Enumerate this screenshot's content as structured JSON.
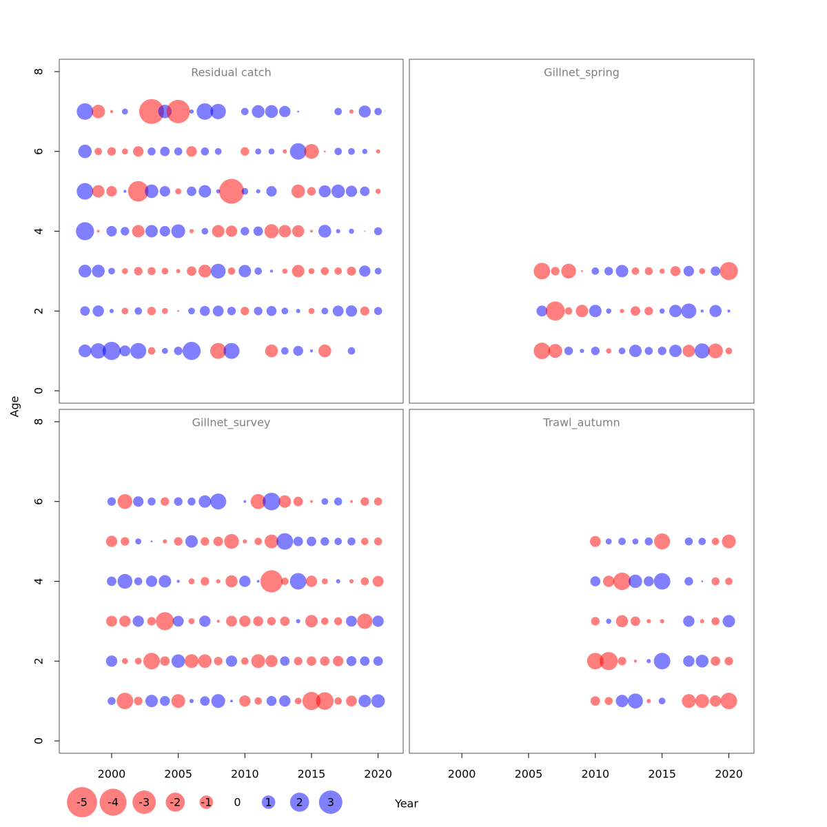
{
  "chart_data": [
    {
      "type": "bubble",
      "title": "Residual catch",
      "x": [
        1998,
        1999,
        2000,
        2001,
        2002,
        2003,
        2004,
        2005,
        2006,
        2007,
        2008,
        2009,
        2010,
        2011,
        2012,
        2013,
        2014,
        2015,
        2016,
        2017,
        2018,
        2019,
        2020
      ],
      "ages": [
        1,
        2,
        3,
        4,
        5,
        6,
        7
      ],
      "values": [
        [
          0.9,
          1.3,
          1.8,
          0.65,
          1.4,
          -0.3,
          0.2,
          0.4,
          1.8,
          null,
          -1.4,
          1.4,
          null,
          null,
          -0.9,
          0.3,
          0.55,
          0.05,
          -0.9,
          null,
          0.3,
          null,
          null
        ],
        [
          0.5,
          0.7,
          0.1,
          -0.25,
          0.3,
          -0.4,
          -0.2,
          -0.02,
          0.25,
          0.55,
          0.65,
          0.4,
          -0.4,
          0.4,
          0.55,
          0.25,
          0.1,
          -0.2,
          0.25,
          0.65,
          0.7,
          -0.45,
          0.35
        ],
        [
          0.9,
          0.9,
          0.25,
          -0.2,
          -0.4,
          -0.35,
          -0.25,
          -0.1,
          -0.5,
          -0.9,
          1.2,
          -0.3,
          0.85,
          0.3,
          0.05,
          -0.15,
          -0.85,
          -0.2,
          -0.35,
          -0.3,
          -0.45,
          0.7,
          0.25
        ],
        [
          1.8,
          -0.04,
          0.6,
          0.4,
          -0.85,
          0.85,
          0.6,
          1.05,
          -0.1,
          0.25,
          -0.85,
          -0.7,
          0.4,
          0.5,
          -1.1,
          -0.85,
          -0.8,
          -0.04,
          0.9,
          0.1,
          0.15,
          -0.01,
          0.35
        ],
        [
          1.5,
          -0.85,
          -0.6,
          0.05,
          -2.3,
          1,
          0.6,
          -0.2,
          0.5,
          0.85,
          0.1,
          -3.4,
          0.25,
          0.1,
          0.6,
          null,
          -1,
          -0.4,
          0.8,
          1,
          0.7,
          0.5,
          -0.15
        ],
        [
          1,
          -0.3,
          -0.4,
          -0.2,
          -0.6,
          0.35,
          0.5,
          0.35,
          -0.6,
          0.35,
          0.25,
          null,
          -0.4,
          0.2,
          0.2,
          -0.1,
          1.5,
          -1.2,
          -0.02,
          0.3,
          0.25,
          0.15,
          -0.1
        ],
        [
          1.5,
          -1,
          -0.05,
          0.2,
          null,
          -3.4,
          1,
          -3,
          0.1,
          1.5,
          1.3,
          null,
          0.3,
          0.9,
          0.9,
          0.7,
          0.02,
          null,
          null,
          0.3,
          -0.1,
          0.8,
          0.3
        ]
      ],
      "xlim": [
        1996.07,
        2021.88
      ],
      "ylim": [
        -0.31,
        8.31
      ],
      "yticks": [
        0,
        2,
        4,
        6,
        8
      ]
    },
    {
      "type": "bubble",
      "title": "Gillnet_spring",
      "x": [
        2006,
        2007,
        2008,
        2009,
        2010,
        2011,
        2012,
        2013,
        2014,
        2015,
        2016,
        2017,
        2018,
        2019,
        2020
      ],
      "ages": [
        1,
        2,
        3
      ],
      "values": [
        [
          -1.5,
          -1.05,
          0.4,
          0.1,
          0.4,
          -0.15,
          0.25,
          0.85,
          0.35,
          0.4,
          0.85,
          -0.85,
          1.25,
          -1.2,
          -0.25
        ],
        [
          0.65,
          -2,
          -0.3,
          -0.85,
          0.85,
          0.15,
          -0.1,
          -0.5,
          -0.4,
          0.15,
          0.85,
          1.25,
          0.05,
          0.8,
          0.05
        ],
        [
          -1.5,
          -0.4,
          -1.2,
          -0.02,
          0.3,
          0.4,
          0.85,
          -0.3,
          -0.35,
          -0.15,
          -0.55,
          0.6,
          -0.2,
          0.5,
          -1.8
        ]
      ],
      "xlim": [
        1996.07,
        2021.88
      ],
      "ylim": [
        -0.31,
        8.31
      ]
    },
    {
      "type": "bubble",
      "title": "Gillnet_survey",
      "x": [
        2000,
        2001,
        2002,
        2003,
        2004,
        2005,
        2006,
        2007,
        2008,
        2009,
        2010,
        2011,
        2012,
        2013,
        2014,
        2015,
        2016,
        2017,
        2018,
        2019,
        2020
      ],
      "ages": [
        1,
        2,
        3,
        4,
        5,
        6
      ],
      "values": [
        [
          0.35,
          -1.5,
          -0.4,
          0.85,
          0.55,
          -1.05,
          0.1,
          0.5,
          1.05,
          0.04,
          -0.7,
          -0.3,
          0.55,
          0.7,
          -0.25,
          -1.8,
          -1.7,
          -0.3,
          -0.65,
          0.85,
          1
        ],
        [
          0.7,
          -0.2,
          -0.25,
          -1.5,
          -0.5,
          1,
          -1.05,
          -1,
          -0.4,
          0.7,
          -0.3,
          -1.05,
          -0.8,
          0.5,
          -0.4,
          -0.5,
          -0.5,
          -0.6,
          0.55,
          0.5,
          0.5
        ],
        [
          -0.65,
          -0.7,
          0.7,
          -0.4,
          -1.8,
          0.65,
          -0.2,
          0.7,
          -0.05,
          -0.65,
          -0.7,
          -0.55,
          -0.4,
          -0.5,
          0.1,
          -0.85,
          -0.3,
          -0.35,
          0.65,
          -1.3,
          0.7
        ],
        [
          0.5,
          1.2,
          0.35,
          0.7,
          0.85,
          0.05,
          -0.2,
          -0.4,
          -0.1,
          -0.8,
          0.7,
          0.04,
          -2.7,
          -0.3,
          1.5,
          -0.7,
          -0.2,
          0.1,
          -0.1,
          -0.35,
          -0.65
        ],
        [
          -0.7,
          -0.4,
          0.2,
          0.02,
          -0.1,
          -0.4,
          0.85,
          -0.4,
          -0.5,
          -1.2,
          -0.1,
          -0.3,
          -1.05,
          1.5,
          0.5,
          0.5,
          0.4,
          0.3,
          0.35,
          -0.3,
          -0.35
        ],
        [
          0.4,
          -1.2,
          0.6,
          0.35,
          -0.4,
          0.4,
          0.35,
          0.85,
          1.4,
          null,
          0.04,
          -1.25,
          1.7,
          -0.85,
          -0.5,
          -0.04,
          0.25,
          0.35,
          -0.04,
          -0.4,
          -0.35
        ]
      ],
      "xlim": [
        1996.07,
        2021.88
      ],
      "ylim": [
        -0.31,
        8.31
      ],
      "xticks": [
        2000,
        2005,
        2010,
        2015,
        2020
      ],
      "yticks": [
        0,
        2,
        4,
        6,
        8
      ]
    },
    {
      "type": "bubble",
      "title": "Trawl_autumn",
      "x": [
        2010,
        2011,
        2012,
        2013,
        2014,
        2015,
        2016,
        2017,
        2018,
        2019,
        2020
      ],
      "ages": [
        1,
        2,
        3,
        4,
        5
      ],
      "values": [
        [
          -0.5,
          -0.35,
          0.85,
          1.25,
          -0.1,
          0.25,
          null,
          -1.05,
          -1.05,
          -0.7,
          -1.5
        ],
        [
          -1.5,
          -1.8,
          -0.4,
          -0.05,
          0.1,
          1.5,
          null,
          0.7,
          0.9,
          -0.5,
          -0.4
        ],
        [
          -0.4,
          0.15,
          -0.8,
          -0.5,
          -0.1,
          -0.1,
          null,
          0.7,
          -0.1,
          -0.35,
          0.85
        ],
        [
          0.55,
          -0.7,
          -1.7,
          1,
          0.55,
          1.5,
          null,
          0.4,
          0.02,
          -0.35,
          -0.3
        ],
        [
          -0.65,
          0.2,
          0.3,
          0.2,
          0.35,
          -1.4,
          null,
          0.35,
          0.3,
          -0.3,
          -1.05
        ]
      ],
      "xlim": [
        1996.07,
        2021.88
      ],
      "ylim": [
        -0.31,
        8.31
      ],
      "xticks": [
        2000,
        2005,
        2010,
        2015,
        2020
      ]
    }
  ],
  "shared": {
    "xlabel": "Year",
    "ylabel": "Age",
    "size_legend": [
      -5,
      -4,
      -3,
      -2,
      -1,
      0,
      1,
      2,
      3
    ],
    "negative_color": "#ff0000",
    "positive_color": "#0000ff"
  }
}
